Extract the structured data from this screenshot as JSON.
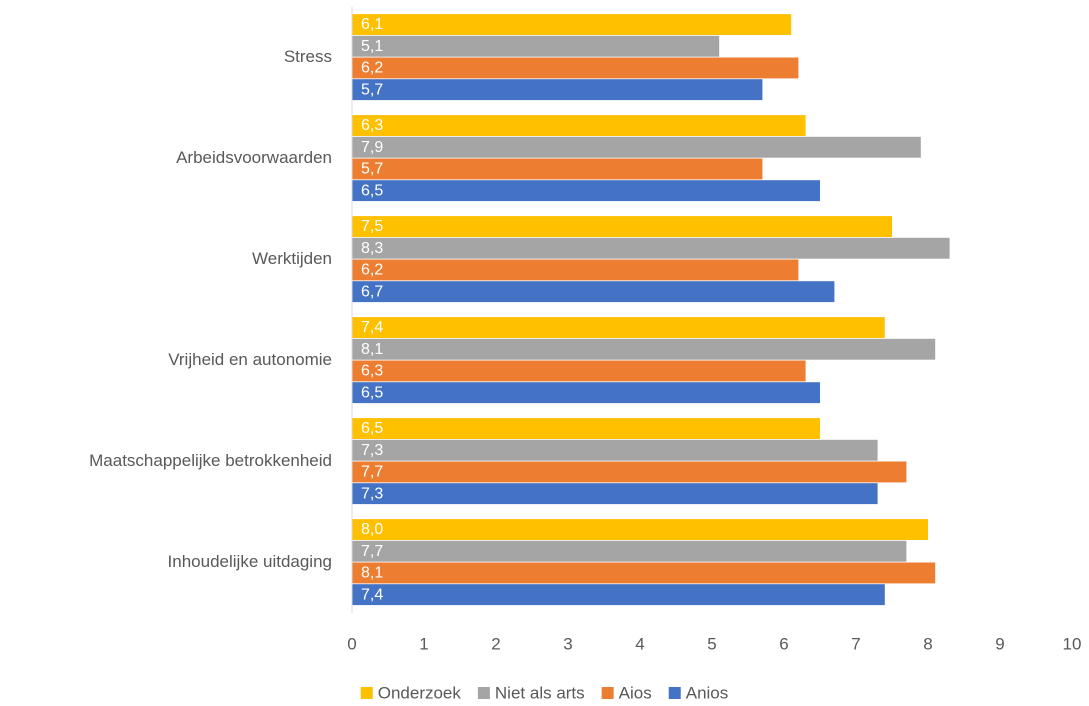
{
  "chart_data": {
    "type": "bar",
    "orientation": "horizontal",
    "categories": [
      "Stress",
      "Arbeidsvoorwaarden",
      "Werktijden",
      "Vrijheid en autonomie",
      "Maatschappelijke betrokkenheid",
      "Inhoudelijke uitdaging"
    ],
    "series": [
      {
        "name": "Onderzoek",
        "color": "#ffc000",
        "values": [
          6.1,
          6.3,
          7.5,
          7.4,
          6.5,
          8.0
        ],
        "value_labels": [
          "6,1",
          "6,3",
          "7,5",
          "7,4",
          "6,5",
          "8,0"
        ]
      },
      {
        "name": "Niet als arts",
        "color": "#a5a5a5",
        "values": [
          5.1,
          7.9,
          8.3,
          8.1,
          7.3,
          7.7
        ],
        "value_labels": [
          "5,1",
          "7,9",
          "8,3",
          "8,1",
          "7,3",
          "7,7"
        ]
      },
      {
        "name": "Aios",
        "color": "#ed7d31",
        "values": [
          6.2,
          5.7,
          6.2,
          6.3,
          7.7,
          8.1
        ],
        "value_labels": [
          "6,2",
          "5,7",
          "6,2",
          "6,3",
          "7,7",
          "8,1"
        ]
      },
      {
        "name": "Anios",
        "color": "#4472c4",
        "values": [
          5.7,
          6.5,
          6.7,
          6.5,
          7.3,
          7.4
        ],
        "value_labels": [
          "5,7",
          "6,5",
          "6,7",
          "6,5",
          "7,3",
          "7,4"
        ]
      }
    ],
    "xlim": [
      0,
      10
    ],
    "xticks": [
      0,
      1,
      2,
      3,
      4,
      5,
      6,
      7,
      8,
      9,
      10
    ],
    "grid": false,
    "legend": "bottom"
  }
}
